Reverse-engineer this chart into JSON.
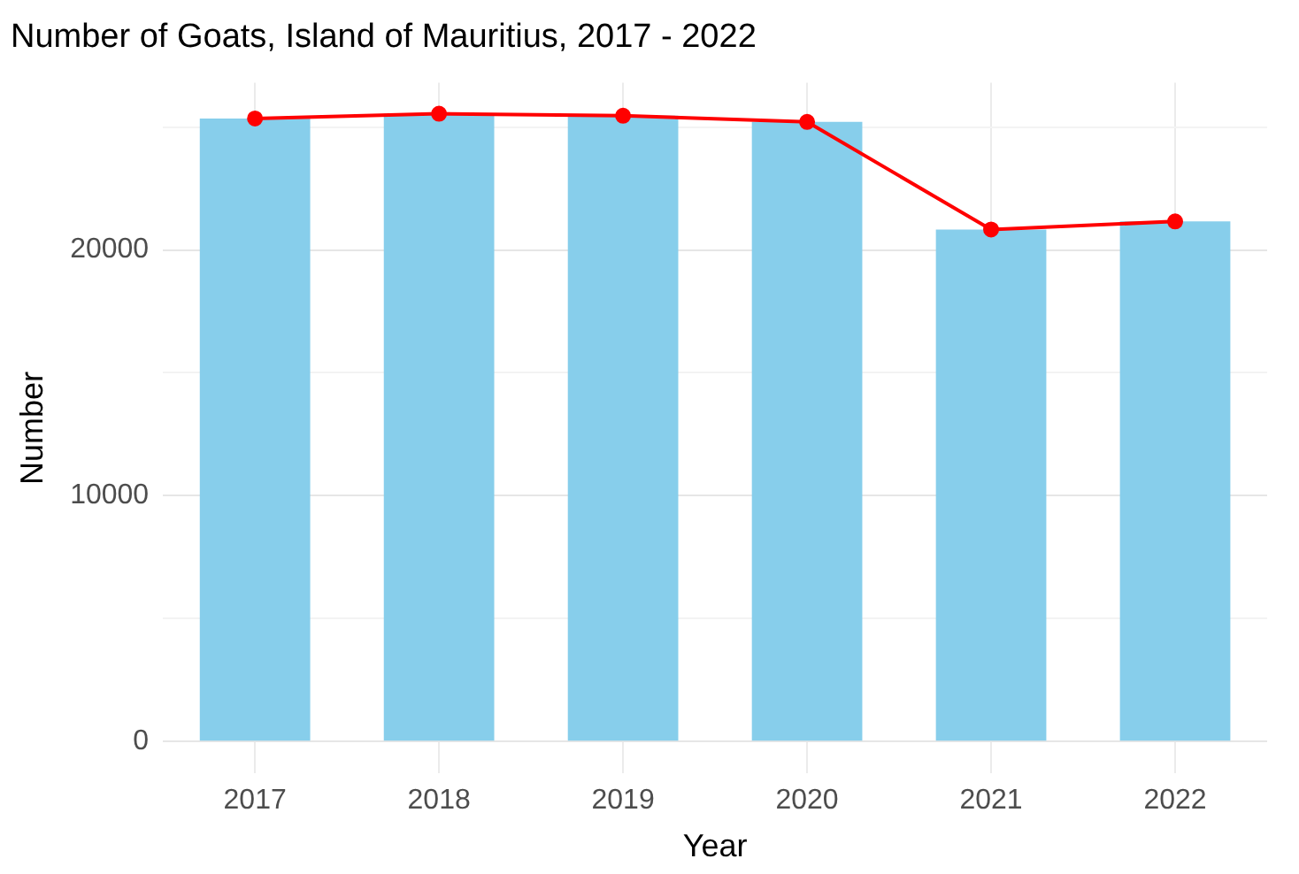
{
  "chart_data": {
    "type": "bar",
    "title": "Number of Goats, Island of Mauritius, 2017 - 2022",
    "xlabel": "Year",
    "ylabel": "Number",
    "categories": [
      "2017",
      "2018",
      "2019",
      "2020",
      "2021",
      "2022"
    ],
    "series": [
      {
        "color": "#87ceeb",
        "values": [
          25350,
          25540,
          25460,
          25210,
          20830,
          21160
        ]
      },
      {
        "type": "line",
        "color": "#ff0000",
        "values": [
          25350,
          25540,
          25460,
          25210,
          20830,
          21160
        ]
      }
    ],
    "ylim": [
      -1300,
      26800
    ],
    "yticks": [
      0,
      {
        "value": 5000,
        "label": null
      },
      10000,
      {
        "value": 15000,
        "label": null
      },
      20000,
      {
        "value": 25000,
        "label": null
      }
    ],
    "grid": true,
    "legend": false,
    "marker": "circle",
    "line_style": "solid"
  }
}
